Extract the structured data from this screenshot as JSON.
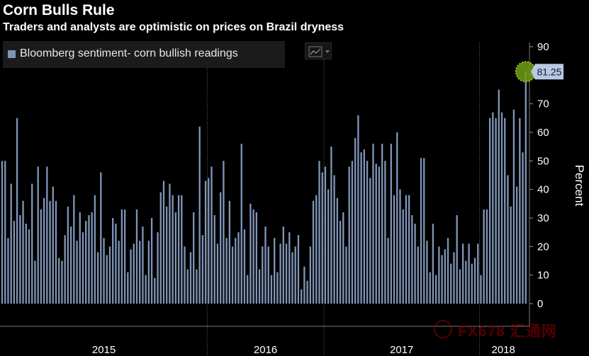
{
  "header": {
    "title": "Corn Bulls Rule",
    "subtitle": "Traders and analysts are optimistic on prices on Brazil dryness"
  },
  "legend": {
    "label": "Bloomberg sentiment- corn bullish readings"
  },
  "watermark": {
    "text": "FX678 汇通网"
  },
  "colors": {
    "bar": "#7f95b8",
    "background": "#000000",
    "highlight": "#9acd32",
    "callout": "#b8c9e0",
    "grid": "#6d6d6d"
  },
  "chart_data": {
    "type": "bar",
    "title": "Corn Bulls Rule",
    "subtitle": "Traders and analysts are optimistic on prices on Brazil dryness",
    "ylabel": "Percent",
    "ylim": [
      0,
      90
    ],
    "yticks": [
      0,
      10,
      20,
      30,
      40,
      50,
      60,
      70,
      80,
      90
    ],
    "xtick_labels": [
      "2015",
      "2016",
      "2017",
      "2018"
    ],
    "grid": "vertical dotted lines at year boundaries",
    "legend_position": "top-left",
    "last_value_label": "81.25",
    "series": [
      {
        "name": "Bloomberg sentiment- corn bullish readings",
        "year_start_index": [
          0,
          69,
          108,
          160
        ],
        "values": [
          50,
          50,
          23,
          42,
          29,
          65,
          31,
          36,
          28,
          26,
          42,
          15,
          48,
          33,
          37,
          48,
          36,
          41,
          36,
          16,
          15,
          24,
          34,
          27,
          38,
          22,
          32,
          25,
          29,
          31,
          32,
          38,
          18,
          46,
          23,
          17,
          20,
          30,
          28,
          22,
          33,
          33,
          11,
          19,
          21,
          33,
          22,
          27,
          10,
          22,
          30,
          9,
          25,
          39,
          43,
          34,
          42,
          38,
          32,
          38,
          38,
          20,
          12,
          18,
          32,
          12,
          62,
          24,
          43,
          44,
          48,
          31,
          21,
          39,
          50,
          23,
          36,
          20,
          23,
          25,
          56,
          26,
          10,
          35,
          33,
          32,
          12,
          20,
          27,
          20,
          10,
          23,
          11,
          21,
          27,
          21,
          25,
          18,
          20,
          24,
          5,
          13,
          8,
          20,
          36,
          38,
          50,
          46,
          48,
          40,
          55,
          45,
          37,
          29,
          32,
          20,
          48,
          50,
          58,
          66,
          53,
          54,
          50,
          44,
          56,
          49,
          48,
          56,
          50,
          23,
          56,
          38,
          60,
          40,
          33,
          38,
          38,
          31,
          28,
          20,
          51,
          51,
          22,
          11,
          28,
          10,
          20,
          17,
          19,
          23,
          14,
          18,
          31,
          12,
          21,
          15,
          21,
          14,
          16,
          21,
          10,
          33,
          33,
          65,
          67,
          65,
          75,
          67,
          65,
          45,
          34,
          68,
          41,
          65,
          53,
          81.25
        ]
      }
    ]
  }
}
